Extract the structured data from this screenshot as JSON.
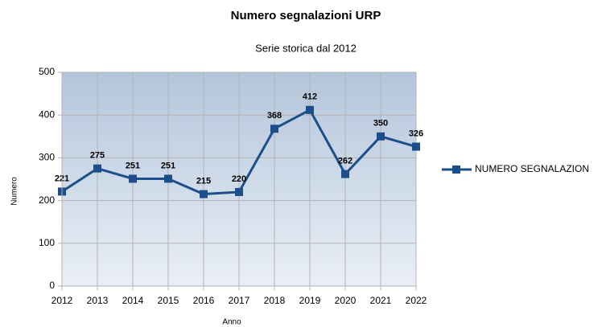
{
  "chart_data": {
    "type": "line",
    "title": "Numero segnalazioni URP",
    "subtitle": "Serie storica dal 2012",
    "x_label": "Anno",
    "y_label": "Numero",
    "categories": [
      "2012",
      "2013",
      "2014",
      "2015",
      "2016",
      "2017",
      "2018",
      "2019",
      "2020",
      "2021",
      "2022"
    ],
    "series": [
      {
        "name": "NUMERO SEGNALAZION",
        "color": "#1c4f8a",
        "values": [
          221,
          275,
          251,
          251,
          215,
          220,
          368,
          412,
          262,
          350,
          326
        ]
      }
    ],
    "ylim": [
      0,
      500
    ],
    "yticks": [
      0,
      100,
      200,
      300,
      400,
      500
    ],
    "grid": true,
    "legend": "right"
  }
}
